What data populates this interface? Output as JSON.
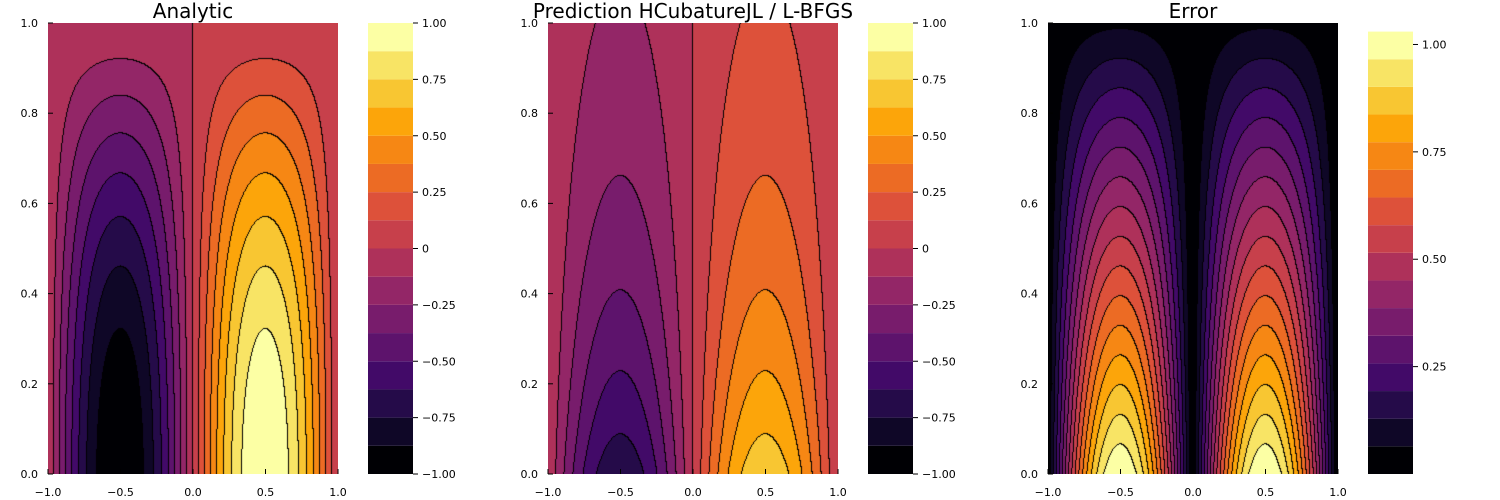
{
  "figure": {
    "panels": [
      {
        "id": "analytic",
        "title": "Analytic"
      },
      {
        "id": "prediction",
        "title": "Prediction HCubatureJL / L-BFGS"
      },
      {
        "id": "error",
        "title": "Error"
      }
    ]
  },
  "chart_data": [
    {
      "type": "contourf",
      "title": "Analytic",
      "function": "sin(pi*x) * cos(pi*y/2)",
      "xlim": [
        -1.0,
        1.0
      ],
      "ylim": [
        0.0,
        1.0
      ],
      "xticks": [
        "−1.0",
        "−0.5",
        "0.0",
        "0.5",
        "1.0"
      ],
      "yticks": [
        "0.0",
        "0.2",
        "0.4",
        "0.6",
        "0.8",
        "1.0"
      ],
      "colormap": "inferno",
      "levels": [
        -1.0,
        -0.875,
        -0.75,
        -0.625,
        -0.5,
        -0.375,
        -0.25,
        -0.125,
        0,
        0.125,
        0.25,
        0.375,
        0.5,
        0.625,
        0.75,
        0.875,
        1.0
      ],
      "colorbar": {
        "range": [
          -1.0,
          1.0
        ],
        "ticks": [
          "1.00",
          "0.75",
          "0.50",
          "0.25",
          "0",
          "−0.25",
          "−0.50",
          "−0.75",
          "−1.00"
        ]
      }
    },
    {
      "type": "contourf",
      "title": "Prediction HCubatureJL / L-BFGS",
      "function": "0.72 * sin(pi*x) * exp(-1.6*y)",
      "xlim": [
        -1.0,
        1.0
      ],
      "ylim": [
        0.0,
        1.0
      ],
      "xticks": [
        "−1.0",
        "−0.5",
        "0.0",
        "0.5",
        "1.0"
      ],
      "yticks": [
        "0.0",
        "0.2",
        "0.4",
        "0.6",
        "0.8",
        "1.0"
      ],
      "colormap": "inferno",
      "levels": [
        -1.0,
        -0.875,
        -0.75,
        -0.625,
        -0.5,
        -0.375,
        -0.25,
        -0.125,
        0,
        0.125,
        0.25,
        0.375,
        0.5,
        0.625,
        0.75,
        0.875,
        1.0
      ],
      "colorbar": {
        "range": [
          -1.0,
          1.0
        ],
        "ticks": [
          "1.00",
          "0.75",
          "0.50",
          "0.25",
          "0",
          "−0.25",
          "−0.50",
          "−0.75",
          "−1.00"
        ]
      }
    },
    {
      "type": "contourf",
      "title": "Error",
      "function": "1.03 * |sin(pi*x)| * (1 - 0.95*y)",
      "xlim": [
        -1.0,
        1.0
      ],
      "ylim": [
        0.0,
        1.0
      ],
      "xticks": [
        "−1.0",
        "−0.5",
        "0.0",
        "0.5",
        "1.0"
      ],
      "yticks": [
        "0.0",
        "0.2",
        "0.4",
        "0.6",
        "0.8",
        "1.0"
      ],
      "colormap": "inferno",
      "levels": [
        0,
        0.0644,
        0.1288,
        0.1931,
        0.2575,
        0.3219,
        0.3863,
        0.4506,
        0.515,
        0.5794,
        0.6438,
        0.7081,
        0.7725,
        0.8369,
        0.9013,
        0.9656,
        1.03
      ],
      "colorbar": {
        "range": [
          0.0,
          1.05
        ],
        "ticks": [
          "1.00",
          "0.75",
          "0.50",
          "0.25"
        ]
      }
    }
  ]
}
